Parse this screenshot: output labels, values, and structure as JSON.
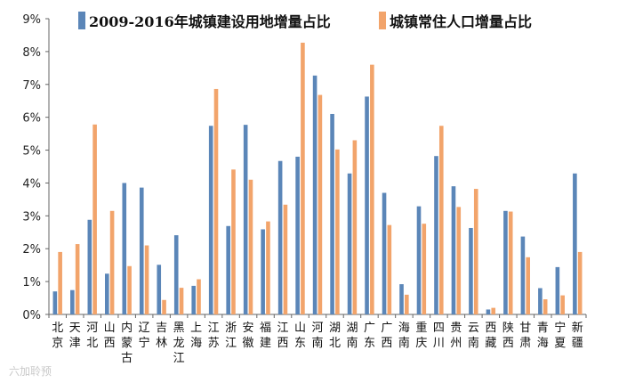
{
  "chart_data": {
    "type": "bar",
    "categories": [
      "北京",
      "天津",
      "河北",
      "山西",
      "内蒙古",
      "辽宁",
      "吉林",
      "黑龙江",
      "上海",
      "江苏",
      "浙江",
      "安徽",
      "福建",
      "江西",
      "山东",
      "河南",
      "湖北",
      "湖南",
      "广东",
      "广西",
      "海南",
      "重庆",
      "四川",
      "贵州",
      "云南",
      "西藏",
      "陕西",
      "甘肃",
      "青海",
      "宁夏",
      "新疆"
    ],
    "series": [
      {
        "name": "2009-2016年城镇建设用地增量占比",
        "color": "#5b86b8",
        "values": [
          0.7,
          0.74,
          2.88,
          1.24,
          4.0,
          3.86,
          1.51,
          2.41,
          0.87,
          5.74,
          2.69,
          5.77,
          2.59,
          4.67,
          4.8,
          7.27,
          6.1,
          4.29,
          6.63,
          3.7,
          0.92,
          3.29,
          4.82,
          3.9,
          2.63,
          0.15,
          3.15,
          2.37,
          0.8,
          1.44,
          4.29
        ]
      },
      {
        "name": "城镇常住人口增量占比",
        "color": "#f2a46b",
        "values": [
          1.9,
          2.14,
          5.78,
          3.15,
          1.47,
          2.1,
          0.44,
          0.81,
          1.07,
          6.86,
          4.41,
          4.1,
          2.83,
          3.34,
          8.27,
          6.68,
          5.02,
          5.3,
          7.6,
          2.72,
          0.6,
          2.76,
          5.74,
          3.27,
          3.82,
          0.2,
          3.13,
          1.74,
          0.46,
          0.58,
          1.9
        ]
      }
    ],
    "ylim": [
      0,
      9
    ],
    "yticks": [
      "0%",
      "1%",
      "2%",
      "3%",
      "4%",
      "5%",
      "6%",
      "7%",
      "8%",
      "9%"
    ],
    "grid": false,
    "legend": "top"
  },
  "watermark": "六加聆预"
}
